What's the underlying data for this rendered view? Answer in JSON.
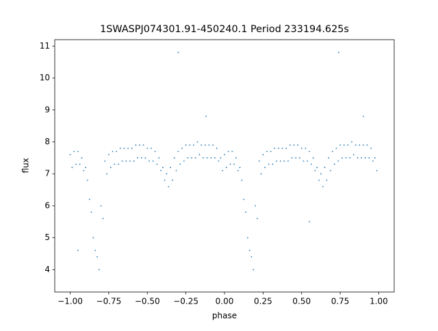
{
  "chart_data": {
    "type": "scatter",
    "title": "1SWASPJ074301.91-450240.1 Period 233194.625s",
    "x_label": "phase",
    "y_label": "flux",
    "series": [
      {
        "name": null,
        "color": "#1f77b4",
        "x": [
          -1,
          -0.975,
          -0.95,
          -0.925,
          -0.9,
          -0.875,
          -0.85,
          -0.825,
          -0.8,
          -0.775,
          -0.75,
          -0.725,
          -0.7,
          -0.675,
          -0.65,
          -0.625,
          -0.6,
          -0.575,
          -0.55,
          -0.525,
          -0.5,
          -0.475,
          -0.45,
          -0.425,
          -0.4,
          -0.375,
          -0.35,
          -0.325,
          -0.3,
          -0.275,
          -0.25,
          -0.225,
          -0.2,
          -0.175,
          -0.15,
          -0.125,
          -0.1,
          -0.075,
          -0.05,
          -0.025,
          0,
          0.025,
          0.05,
          0.075,
          0.1,
          0.125,
          0.15,
          0.175,
          0.2,
          0.225,
          0.25,
          0.275,
          0.3,
          0.325,
          0.35,
          0.375,
          0.4,
          0.425,
          0.45,
          0.475,
          0.5,
          0.525,
          0.55,
          0.575,
          0.6,
          0.625,
          0.65,
          0.675,
          0.7,
          0.725,
          0.75,
          0.775,
          0.8,
          0.825,
          0.85,
          0.875,
          0.9,
          0.925,
          0.95,
          0.975,
          -0.9875,
          -0.9625,
          -0.9375,
          -0.9125,
          -0.8875,
          -0.8625,
          -0.8375,
          -0.8125,
          -0.7875,
          -0.7625,
          -0.7375,
          -0.7125,
          -0.6875,
          -0.6625,
          -0.6375,
          -0.6125,
          -0.5875,
          -0.5625,
          -0.5375,
          -0.5125,
          -0.4875,
          -0.4625,
          -0.4375,
          -0.4125,
          -0.3875,
          -0.3625,
          -0.3375,
          -0.3125,
          -0.2875,
          -0.2625,
          -0.2375,
          -0.2125,
          -0.1875,
          -0.1625,
          -0.1375,
          -0.1125,
          -0.0875,
          -0.0625,
          -0.0375,
          -0.0125,
          0.0125,
          0.0375,
          0.0625,
          0.0875,
          0.1125,
          0.1375,
          0.1625,
          0.1875,
          0.2125,
          0.2375,
          0.2625,
          0.2875,
          0.3125,
          0.3375,
          0.3625,
          0.3875,
          0.4125,
          0.4375,
          0.4625,
          0.4875,
          0.5125,
          0.5375,
          0.5625,
          0.5875,
          0.6125,
          0.6375,
          0.6625,
          0.6875,
          0.7125,
          0.7375,
          0.7625,
          0.7875,
          0.8125,
          0.8375,
          0.8625,
          0.8875,
          0.9125,
          0.9375,
          0.9625,
          0.9875,
          -0.3,
          0.74,
          -0.95,
          0.55,
          -0.12,
          0.9
        ],
        "values": [
          7.6,
          7.7,
          7.7,
          7.5,
          7.2,
          6.2,
          5.0,
          4.4,
          6.0,
          7.4,
          7.6,
          7.7,
          7.7,
          7.8,
          7.8,
          7.8,
          7.8,
          7.9,
          7.9,
          7.9,
          7.8,
          7.8,
          7.7,
          7.5,
          7.2,
          7.0,
          7.2,
          7.5,
          7.7,
          7.8,
          7.9,
          7.9,
          7.9,
          8.0,
          7.9,
          7.9,
          7.9,
          7.9,
          7.8,
          7.5,
          7.6,
          7.7,
          7.7,
          7.5,
          7.2,
          6.2,
          5.0,
          4.4,
          6.0,
          7.4,
          7.6,
          7.7,
          7.7,
          7.8,
          7.8,
          7.8,
          7.8,
          7.9,
          7.9,
          7.9,
          7.8,
          7.8,
          7.7,
          7.5,
          7.2,
          7.0,
          7.2,
          7.5,
          7.7,
          7.8,
          7.9,
          7.9,
          7.9,
          8.0,
          7.9,
          7.9,
          7.9,
          7.9,
          7.8,
          7.5,
          7.2,
          7.3,
          7.3,
          7.1,
          6.8,
          5.8,
          4.6,
          4.0,
          5.6,
          7.0,
          7.2,
          7.3,
          7.3,
          7.4,
          7.4,
          7.4,
          7.4,
          7.5,
          7.5,
          7.5,
          7.4,
          7.4,
          7.3,
          7.1,
          6.8,
          6.6,
          6.8,
          7.1,
          7.3,
          7.4,
          7.5,
          7.5,
          7.5,
          7.6,
          7.5,
          7.5,
          7.5,
          7.5,
          7.4,
          7.1,
          7.2,
          7.3,
          7.3,
          7.1,
          6.8,
          5.8,
          4.6,
          4.0,
          5.6,
          7.0,
          7.2,
          7.3,
          7.3,
          7.4,
          7.4,
          7.4,
          7.4,
          7.5,
          7.5,
          7.5,
          7.4,
          7.4,
          7.3,
          7.1,
          6.8,
          6.6,
          6.8,
          7.1,
          7.3,
          7.4,
          7.5,
          7.5,
          7.5,
          7.6,
          7.5,
          7.5,
          7.5,
          7.5,
          7.4,
          7.1,
          10.8,
          10.8,
          4.6,
          5.5,
          8.8,
          8.8
        ]
      }
    ],
    "xlim": [
      -1.1,
      1.1
    ],
    "ylim": [
      3.3,
      11.2
    ],
    "xticks": [
      {
        "value": -1,
        "label": "−1.00"
      },
      {
        "value": -0.75,
        "label": "−0.75"
      },
      {
        "value": -0.5,
        "label": "−0.50"
      },
      {
        "value": -0.25,
        "label": "−0.25"
      },
      {
        "value": 0,
        "label": "0.00"
      },
      {
        "value": 0.25,
        "label": "0.25"
      },
      {
        "value": 0.5,
        "label": "0.50"
      },
      {
        "value": 0.75,
        "label": "0.75"
      },
      {
        "value": 1,
        "label": "1.00"
      }
    ],
    "yticks": [
      4,
      5,
      6,
      7,
      8,
      9,
      10,
      11
    ]
  }
}
